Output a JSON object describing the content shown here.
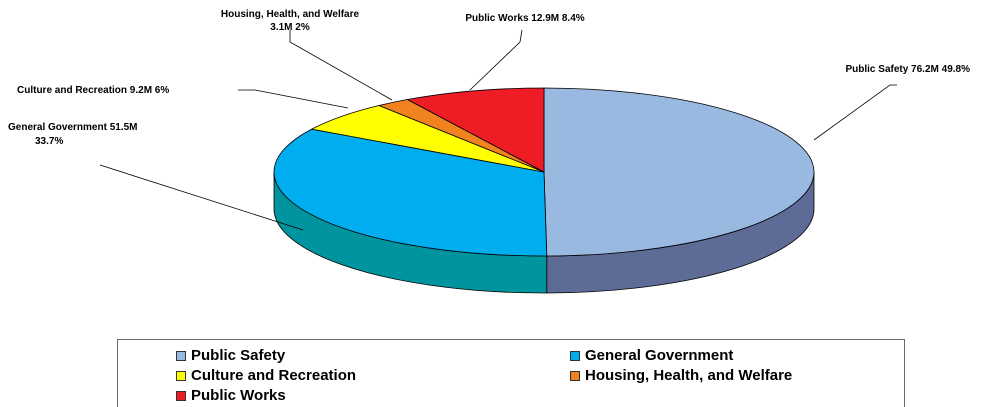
{
  "chart_data": {
    "type": "pie",
    "title": "",
    "units": "M",
    "slices": [
      {
        "name": "Public Safety",
        "value": 76.2,
        "percent": 49.8,
        "label": "Public Safety  76.2M   49.8%",
        "color": "#99b9e0",
        "side_color": "#5e6b96"
      },
      {
        "name": "General Government",
        "value": 51.5,
        "percent": 33.7,
        "label_line1": "General Government  51.5M",
        "label_line2": "33.7%",
        "color": "#00adee",
        "side_color": "#00959e"
      },
      {
        "name": "Culture and Recreation",
        "value": 9.2,
        "percent": 6,
        "label": "Culture and Recreation  9.2M   6%",
        "color": "#ffff00",
        "side_color": "#b3b300"
      },
      {
        "name": "Housing, Health, and Welfare",
        "value": 3.1,
        "percent": 2,
        "label_line1": "Housing, Health, and Welfare",
        "label_line2": "3.1M    2%",
        "color": "#f0831e",
        "side_color": "#a85a14"
      },
      {
        "name": "Public Works",
        "value": 12.9,
        "percent": 8.4,
        "label": "Public Works  12.9M    8.4%",
        "color": "#ee1c25",
        "side_color": "#a8131a"
      }
    ],
    "legend_position": "bottom"
  },
  "legend": {
    "items": [
      {
        "label": "Public Safety",
        "color": "#99b9e0"
      },
      {
        "label": "General Government",
        "color": "#00adee"
      },
      {
        "label": "Culture and Recreation",
        "color": "#ffff00"
      },
      {
        "label": "Housing, Health, and Welfare",
        "color": "#f0831e"
      },
      {
        "label": "Public Works",
        "color": "#ee1c25"
      }
    ]
  }
}
